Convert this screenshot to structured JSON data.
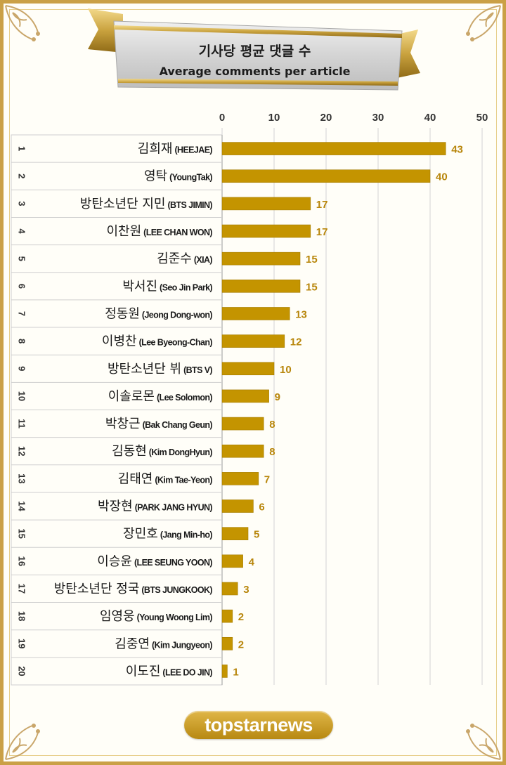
{
  "title_ko": "기사당 평균 댓글 수",
  "title_en": "Average comments per article",
  "logo_text": "topstarnews",
  "colors": {
    "bar": "#c49400",
    "value_text": "#b8860b",
    "frame": "#caa046",
    "banner": "#d8d8d8",
    "ribbon_gold": "#c9a23e"
  },
  "chart_data": {
    "type": "bar",
    "orientation": "horizontal",
    "xlim": [
      0,
      50
    ],
    "x_ticks": [
      "0",
      "10",
      "20",
      "30",
      "40",
      "50"
    ],
    "grid": true,
    "ranks": [
      "1",
      "2",
      "3",
      "4",
      "5",
      "6",
      "7",
      "8",
      "9",
      "10",
      "11",
      "12",
      "13",
      "14",
      "15",
      "16",
      "17",
      "18",
      "19",
      "20"
    ],
    "names_ko": [
      "김희재",
      "영탁",
      "방탄소년단 지민",
      "이찬원",
      "김준수",
      "박서진",
      "정동원",
      "이병찬",
      "방탄소년단 뷔",
      "이솔로몬",
      "박창근",
      "김동현",
      "김태연",
      "박장현",
      "장민호",
      "이승윤",
      "방탄소년단 정국",
      "임영웅",
      "김중연",
      "이도진"
    ],
    "names_en": [
      "(HEEJAE)",
      "(YoungTak)",
      "(BTS JIMIN)",
      "(LEE CHAN WON)",
      "(XIA)",
      "(Seo Jin Park)",
      "(Jeong Dong-won)",
      "(Lee Byeong-Chan)",
      "(BTS V)",
      "(Lee Solomon)",
      "(Bak Chang Geun)",
      "(Kim DongHyun)",
      "(Kim Tae-Yeon)",
      "(PARK JANG HYUN)",
      "(Jang Min-ho)",
      "(LEE SEUNG YOON)",
      "(BTS JUNGKOOK)",
      "(Young Woong Lim)",
      "(Kim Jungyeon)",
      "(LEE DO JIN)"
    ],
    "values": [
      43,
      40,
      17,
      17,
      15,
      15,
      13,
      12,
      10,
      9,
      8,
      8,
      7,
      6,
      5,
      4,
      3,
      2,
      2,
      1
    ]
  }
}
